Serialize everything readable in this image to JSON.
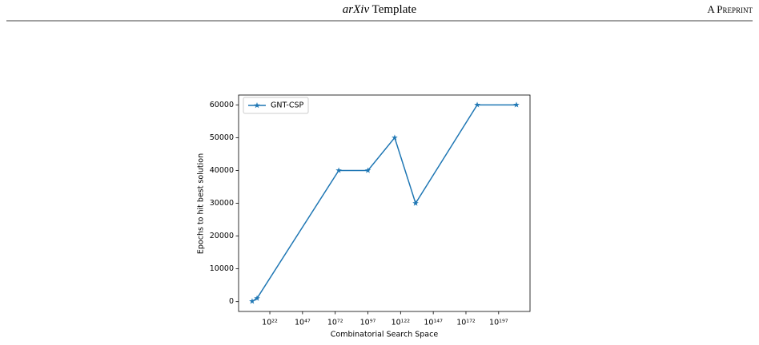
{
  "header": {
    "venue": "arXiv",
    "title": "Template",
    "right": "A Preprint"
  },
  "chart_data": {
    "type": "line",
    "x": [
      300000000.0,
      1600000000000.0,
      5e+74,
      1e+97,
      3e+117,
      3e+133,
      4e+180,
      4e+210
    ],
    "series": [
      {
        "name": "GNT-CSP",
        "color": "#1f77b4",
        "marker": "star",
        "values": [
          100,
          1000,
          40000,
          40000,
          50000,
          30000,
          60000,
          60000
        ]
      }
    ],
    "x_label": "Combinatorial Search Space",
    "y_label": "Epochs to hit best solution",
    "log_x": true,
    "xlim": [
      0.0126,
      1e+221
    ],
    "xticks": [
      {
        "value": 1e+22,
        "label": "10²²"
      },
      {
        "value": 1e+47,
        "label": "10⁴⁷"
      },
      {
        "value": 1e+72,
        "label": "10⁷²"
      },
      {
        "value": 1e+97,
        "label": "10⁹⁷"
      },
      {
        "value": 1e+122,
        "label": "10¹²²"
      },
      {
        "value": 1e+147,
        "label": "10¹⁴⁷"
      },
      {
        "value": 1e+172,
        "label": "10¹⁷²"
      },
      {
        "value": 1e+197,
        "label": "10¹⁹⁷"
      }
    ],
    "ylim": [
      -3000,
      63000
    ],
    "yticks": [
      0,
      10000,
      20000,
      30000,
      40000,
      50000,
      60000
    ],
    "grid": false,
    "legend": "upper left"
  }
}
